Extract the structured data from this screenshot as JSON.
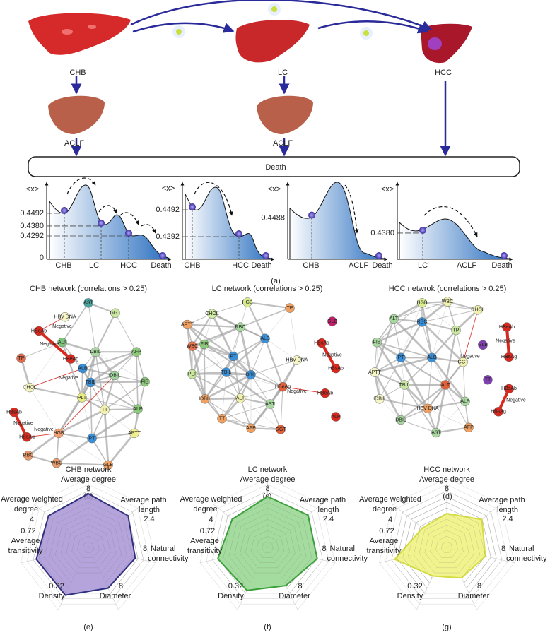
{
  "flow": {
    "labels": [
      "CHB",
      "LC",
      "HCC",
      "ACLF",
      "ACLF"
    ],
    "death": "Death"
  },
  "landscapes": {
    "axis_label": "<x>",
    "caption": "(a)",
    "panels": [
      {
        "yticks": [
          0.4492,
          {
            "value": 0.438,
            "label": "0.4380"
          },
          0.4292,
          0
        ],
        "xlabels": [
          "CHB",
          "LC",
          "HCC",
          "Death"
        ]
      },
      {
        "yticks": [
          0.4492,
          0.4292
        ],
        "xlabels": [
          "CHB",
          "HCC",
          "Death"
        ]
      },
      {
        "yticks": [
          0.4488
        ],
        "xlabels": [
          "CHB",
          "ACLF",
          "Death"
        ]
      },
      {
        "yticks": [
          {
            "value": 0.438,
            "label": "0.4380"
          }
        ],
        "xlabels": [
          "LC",
          "ACLF",
          "Death"
        ]
      }
    ]
  },
  "networks": [
    {
      "title": "CHB network (correlations > 0.25)",
      "caption": "(b)",
      "annotations": [
        "Negative",
        "Negative",
        "Negative",
        "Negative",
        "Negative"
      ],
      "nodes": [
        {
          "label": "AST",
          "color": "#4aa3a0"
        },
        {
          "label": "GGT",
          "color": "#c8e6a0"
        },
        {
          "label": "HBV DNA",
          "color": "#f5f5c8"
        },
        {
          "label": "HBeAb",
          "color": "#d9281e"
        },
        {
          "label": "ALT",
          "color": "#7cc47a"
        },
        {
          "label": "HBeAg",
          "color": "#d9281e"
        },
        {
          "label": "TP",
          "color": "#e06a4a"
        },
        {
          "label": "DBIL",
          "color": "#a8d8a0"
        },
        {
          "label": "AFP",
          "color": "#8cc97a"
        },
        {
          "label": "ALB",
          "color": "#3a8fd9"
        },
        {
          "label": "IDBIL",
          "color": "#9ed49a"
        },
        {
          "label": "TBIL",
          "color": "#3a8fd9"
        },
        {
          "label": "FIB",
          "color": "#8cc97a"
        },
        {
          "label": "HBsAb",
          "color": "#d9281e"
        },
        {
          "label": "CHOL",
          "color": "#f5f5c0"
        },
        {
          "label": "PLT",
          "color": "#e8ec80"
        },
        {
          "label": "TT",
          "color": "#f2f2b0"
        },
        {
          "label": "ALP",
          "color": "#8cc97a"
        },
        {
          "label": "HBsAg",
          "color": "#d9281e"
        },
        {
          "label": "HGB",
          "color": "#f0a070"
        },
        {
          "label": "PT",
          "color": "#3a8fd9"
        },
        {
          "label": "APTT",
          "color": "#f0ec90"
        },
        {
          "label": "RBC",
          "color": "#e89a68"
        },
        {
          "label": "WBC",
          "color": "#e89a68"
        },
        {
          "label": "GLB",
          "color": "#f0a060"
        }
      ]
    },
    {
      "title": "LC network (correlations > 0.25)",
      "caption": "(c)",
      "annotations": [
        "Negative",
        "Negative"
      ],
      "nodes": [
        {
          "label": "HGB",
          "color": "#d8ec90"
        },
        {
          "label": "TP",
          "color": "#f0a060"
        },
        {
          "label": "CHOL",
          "color": "#d0eca0"
        },
        {
          "label": "GLB",
          "color": "#c0206a"
        },
        {
          "label": "APTT",
          "color": "#f0a060"
        },
        {
          "label": "RBC",
          "color": "#a8d8a0"
        },
        {
          "label": "ALB",
          "color": "#3a8fd9"
        },
        {
          "label": "FIB",
          "color": "#8cc97a"
        },
        {
          "label": "WBC",
          "color": "#e8704a"
        },
        {
          "label": "HBsAg",
          "color": "#d9281e"
        },
        {
          "label": "PT",
          "color": "#3a8fd9"
        },
        {
          "label": "HBV DNA",
          "color": "#f5f5c8"
        },
        {
          "label": "TBIL",
          "color": "#3a8fd9"
        },
        {
          "label": "DBIL",
          "color": "#3a8fd9"
        },
        {
          "label": "HBsAb",
          "color": "#d9281e"
        },
        {
          "label": "PLT",
          "color": "#c8e6a0"
        },
        {
          "label": "IDBIL",
          "color": "#f0a060"
        },
        {
          "label": "HBeAg",
          "color": "#e0603a"
        },
        {
          "label": "HBeAb",
          "color": "#d9281e"
        },
        {
          "label": "ALT",
          "color": "#f0f0b0"
        },
        {
          "label": "AST",
          "color": "#a8d8a0"
        },
        {
          "label": "ALP",
          "color": "#d9281e"
        },
        {
          "label": "TT",
          "color": "#f0a060"
        },
        {
          "label": "AFP",
          "color": "#f0a060"
        },
        {
          "label": "GGT",
          "color": "#e0603a"
        }
      ]
    },
    {
      "title": "HCC netwrok (correlations > 0.25)",
      "caption": "(d)",
      "annotations": [
        "Negative",
        "Negative",
        "Negative"
      ],
      "nodes": [
        {
          "label": "HGB",
          "color": "#d8ec90"
        },
        {
          "label": "WBC",
          "color": "#f0f0b0"
        },
        {
          "label": "CHOL",
          "color": "#f0f0b0"
        },
        {
          "label": "ALT",
          "color": "#a8d8a0"
        },
        {
          "label": "RBC",
          "color": "#3a8fd9"
        },
        {
          "label": "TP",
          "color": "#c8e6a0"
        },
        {
          "label": "HBeAb",
          "color": "#d9281e"
        },
        {
          "label": "FIB",
          "color": "#a8d8a0"
        },
        {
          "label": "GLB",
          "color": "#8040b0"
        },
        {
          "label": "HBeAg",
          "color": "#d9281e"
        },
        {
          "label": "PT",
          "color": "#3a8fd9"
        },
        {
          "label": "ALB",
          "color": "#3a8fd9"
        },
        {
          "label": "GGT",
          "color": "#f0f0b0"
        },
        {
          "label": "TT",
          "color": "#8040b0"
        },
        {
          "label": "APTT",
          "color": "#f5f5c8"
        },
        {
          "label": "TBIL",
          "color": "#c8e6a0"
        },
        {
          "label": "ALT",
          "color": "#e0603a"
        },
        {
          "label": "IDBIL",
          "color": "#f5f5c8"
        },
        {
          "label": "HBV DNA",
          "color": "#f0a060"
        },
        {
          "label": "ALP",
          "color": "#a8d8a0"
        },
        {
          "label": "HBsAb",
          "color": "#d9281e"
        },
        {
          "label": "HBsAg",
          "color": "#d9281e"
        },
        {
          "label": "DBIL",
          "color": "#a8d8a0"
        },
        {
          "label": "AFP",
          "color": "#f0a060"
        },
        {
          "label": "AST",
          "color": "#a8d8a0"
        }
      ]
    }
  ],
  "radar_axes": [
    {
      "label": [
        "Average degree"
      ],
      "max": 8
    },
    {
      "label": [
        "Average path",
        "length"
      ],
      "max": 2.4
    },
    {
      "label": [
        "Natural",
        "connectivity"
      ],
      "max": 8
    },
    {
      "label": [
        "Diameter"
      ],
      "max": 8
    },
    {
      "label": [
        "Density"
      ],
      "max": 0.32
    },
    {
      "label": [
        "Average",
        "transitivity"
      ],
      "max": 0.72
    },
    {
      "label": [
        "Average weighted",
        "degree"
      ],
      "max": 4
    }
  ],
  "radars": [
    {
      "title": "CHB network",
      "caption": "(e)",
      "color": "#a894d6",
      "stroke": "#2e2e7e",
      "values": [
        7.6,
        2.16,
        6.8,
        6.4,
        0.3,
        0.68,
        3.6
      ]
    },
    {
      "title": "LC network",
      "caption": "(f)",
      "color": "#94d68e",
      "stroke": "#3aa03a",
      "values": [
        7.2,
        2.2,
        7.2,
        6,
        0.27,
        0.65,
        3.2
      ]
    },
    {
      "title": "HCC network",
      "caption": "(g)",
      "color": "#eef27a",
      "stroke": "#d4dc40",
      "values": [
        4.8,
        1.9,
        5.6,
        4.8,
        0.18,
        0.68,
        2.2
      ]
    }
  ]
}
